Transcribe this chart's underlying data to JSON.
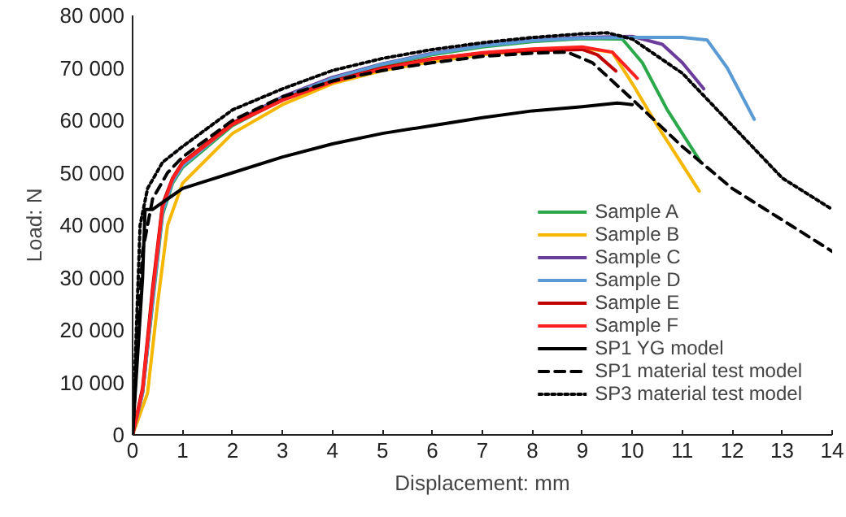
{
  "chart_data": {
    "type": "line",
    "xlabel": "Displacement: mm",
    "ylabel": "Load: N",
    "xlim": [
      0,
      14
    ],
    "ylim": [
      0,
      80000
    ],
    "xticks": [
      0,
      1,
      2,
      3,
      4,
      5,
      6,
      7,
      8,
      9,
      10,
      11,
      12,
      13,
      14
    ],
    "yticks": [
      {
        "value": 0,
        "label": "0"
      },
      {
        "value": 10000,
        "label": "10 000"
      },
      {
        "value": 20000,
        "label": "20 000"
      },
      {
        "value": 30000,
        "label": "30 000"
      },
      {
        "value": 40000,
        "label": "40 000"
      },
      {
        "value": 50000,
        "label": "50 000"
      },
      {
        "value": 60000,
        "label": "60 000"
      },
      {
        "value": 70000,
        "label": "70 000"
      },
      {
        "value": 80000,
        "label": "80 000"
      }
    ],
    "grid": false,
    "legend": "bottom right",
    "series": [
      {
        "name": "Sample A",
        "color": "#2aa84a",
        "line_style": "solid",
        "x": [
          0,
          0.2,
          0.4,
          0.6,
          0.8,
          1,
          2,
          3,
          4,
          5,
          6,
          7,
          8,
          9,
          9.8,
          10.2,
          10.7,
          11.37
        ],
        "values": [
          0,
          8000,
          25000,
          42000,
          48000,
          51000,
          59000,
          64000,
          67800,
          70500,
          72500,
          74000,
          75000,
          75600,
          75500,
          71000,
          62000,
          52000
        ]
      },
      {
        "name": "Sample B",
        "color": "#f5b700",
        "line_style": "solid",
        "x": [
          0,
          0.3,
          0.5,
          0.7,
          1,
          2,
          3,
          4,
          5,
          6,
          7,
          8,
          9,
          9.6,
          10,
          10.5,
          11.34
        ],
        "values": [
          0,
          8000,
          25000,
          40000,
          48000,
          57500,
          63000,
          67000,
          69500,
          71200,
          72500,
          73300,
          73800,
          73000,
          67000,
          59000,
          46500
        ]
      },
      {
        "name": "Sample C",
        "color": "#6a3d9a",
        "line_style": "solid",
        "x": [
          0,
          0.2,
          0.4,
          0.6,
          0.8,
          1,
          2,
          3,
          4,
          5,
          6,
          7,
          8,
          9,
          10,
          10.6,
          11,
          11.43
        ],
        "values": [
          0,
          8000,
          26000,
          43000,
          48500,
          51500,
          59500,
          64500,
          68200,
          70800,
          72800,
          74300,
          75300,
          75800,
          76000,
          74500,
          71000,
          66000
        ]
      },
      {
        "name": "Sample D",
        "color": "#5b9bd5",
        "line_style": "solid",
        "x": [
          0,
          0.2,
          0.4,
          0.6,
          0.8,
          1,
          2,
          3,
          4,
          5,
          6,
          7,
          8,
          9,
          10,
          11,
          11.5,
          11.9,
          12.44
        ],
        "values": [
          0,
          8000,
          25500,
          42500,
          48300,
          51300,
          59300,
          64300,
          68000,
          70700,
          72700,
          74200,
          75200,
          75700,
          75800,
          75800,
          75300,
          70000,
          60200
        ]
      },
      {
        "name": "Sample E",
        "color": "#c00000",
        "line_style": "solid",
        "x": [
          0,
          0.2,
          0.4,
          0.6,
          0.8,
          1,
          2,
          3,
          4,
          5,
          6,
          7,
          8,
          9,
          9.3,
          9.67
        ],
        "values": [
          0,
          9000,
          28000,
          44000,
          49000,
          52000,
          59500,
          64000,
          67500,
          70000,
          71800,
          72800,
          73300,
          73500,
          72500,
          69400
        ]
      },
      {
        "name": "Sample F",
        "color": "#ff2020",
        "line_style": "solid",
        "x": [
          0,
          0.2,
          0.4,
          0.6,
          0.8,
          1,
          2,
          3,
          4,
          5,
          6,
          7,
          8,
          9,
          9.6,
          10.1
        ],
        "values": [
          0,
          8500,
          27000,
          43500,
          48800,
          51800,
          59200,
          63800,
          67300,
          69800,
          71700,
          72900,
          73600,
          74000,
          73000,
          68000
        ]
      },
      {
        "name": "SP1 YG model",
        "color": "#000000",
        "line_style": "solid",
        "x": [
          0,
          0.2,
          0.25,
          0.4,
          0.7,
          1,
          1.5,
          2,
          3,
          4,
          5,
          6,
          7,
          8,
          9,
          9.7,
          10
        ],
        "values": [
          0,
          30000,
          43000,
          43000,
          45000,
          47000,
          48500,
          50000,
          53000,
          55500,
          57500,
          59000,
          60500,
          61800,
          62600,
          63300,
          63000
        ]
      },
      {
        "name": "SP1 material test model",
        "color": "#000000",
        "line_style": "dashed",
        "x": [
          0,
          0.2,
          0.4,
          0.7,
          1,
          2,
          3,
          4,
          5,
          6,
          7,
          8,
          8.7,
          9.2,
          10,
          11,
          12,
          13,
          14
        ],
        "values": [
          0,
          35000,
          45000,
          50000,
          53000,
          60000,
          64500,
          67500,
          69500,
          71000,
          72200,
          72800,
          73000,
          71000,
          64000,
          55000,
          47000,
          41000,
          35000
        ]
      },
      {
        "name": "SP3 material test model",
        "color": "#000000",
        "line_style": "dotted",
        "x": [
          0,
          0.15,
          0.3,
          0.6,
          1,
          2,
          3,
          4,
          5,
          6,
          7,
          8,
          9,
          9.5,
          10,
          11,
          12,
          13,
          14
        ],
        "values": [
          0,
          40000,
          47000,
          52000,
          55000,
          62000,
          66000,
          69500,
          71800,
          73500,
          74800,
          75800,
          76500,
          76700,
          75500,
          69000,
          59000,
          49000,
          43000
        ]
      }
    ]
  }
}
